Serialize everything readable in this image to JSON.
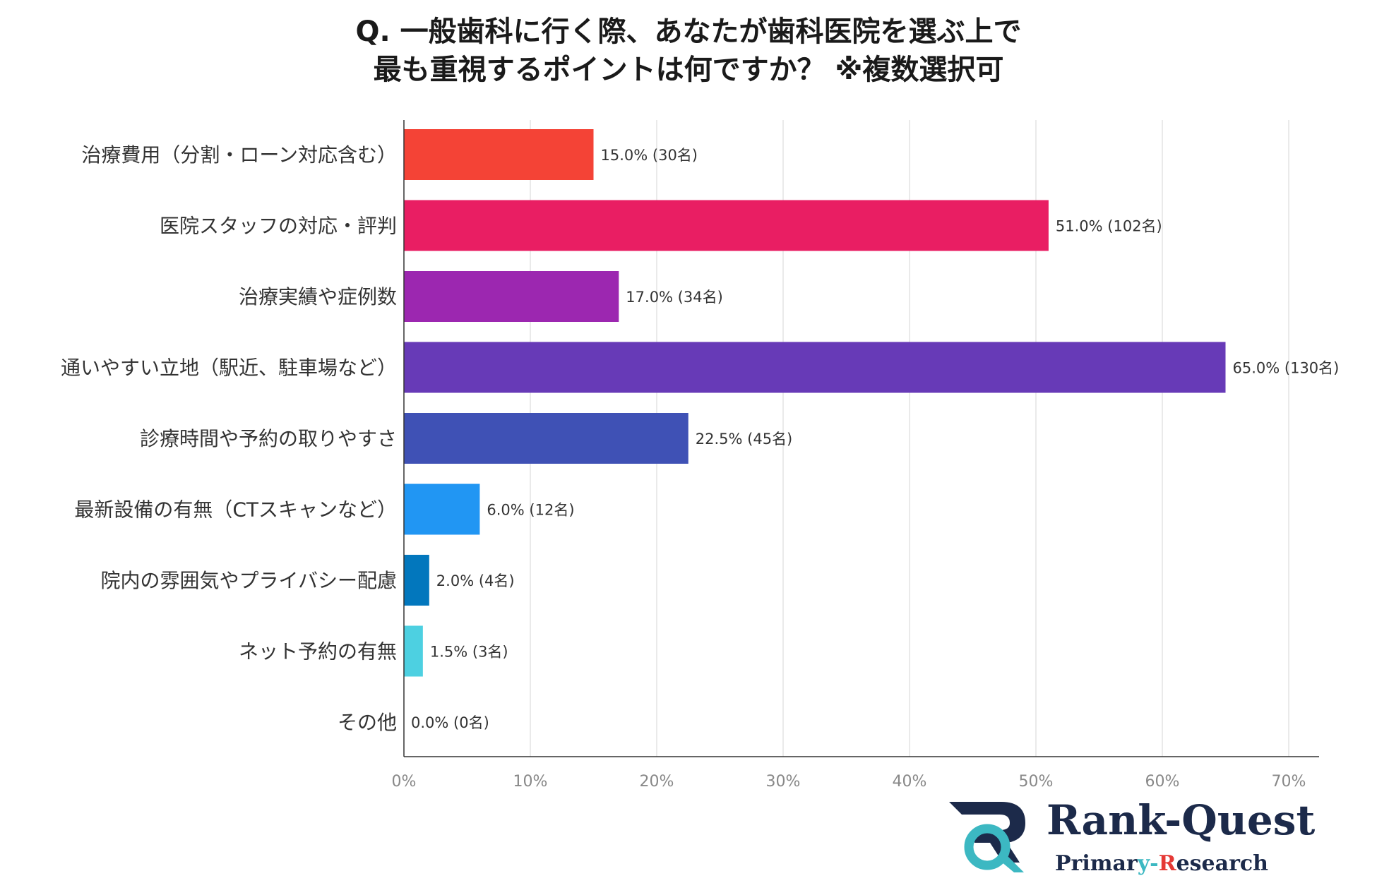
{
  "title": {
    "line1": "Q. 一般歯科に行く際、あなたが歯科医院を選ぶ上で",
    "line2": "最も重視するポイントは何ですか？ ※複数選択可"
  },
  "chart_data": {
    "type": "bar",
    "orientation": "horizontal",
    "categories": [
      "治療費用（分割・ローン対応含む）",
      "医院スタッフの対応・評判",
      "治療実績や症例数",
      "通いやすい立地（駅近、駐車場など）",
      "診療時間や予約の取りやすさ",
      "最新設備の有無（CTスキャンなど）",
      "院内の雰囲気やプライバシー配慮",
      "ネット予約の有無",
      "その他"
    ],
    "values": [
      15.0,
      51.0,
      17.0,
      65.0,
      22.5,
      6.0,
      2.0,
      1.5,
      0.0
    ],
    "value_labels": [
      "15.0% (30名)",
      "51.0% (102名)",
      "17.0% (34名)",
      "65.0% (130名)",
      "22.5% (45名)",
      "6.0% (12名)",
      "2.0% (4名)",
      "1.5% (3名)",
      "0.0% (0名)"
    ],
    "colors": [
      "#f44336",
      "#e91e63",
      "#9c27b0",
      "#673ab7",
      "#3f51b5",
      "#2196f3",
      "#0277bd",
      "#4dd0e1",
      "#9e9e9e"
    ],
    "xlim": [
      0,
      70
    ],
    "xticks": [
      "0%",
      "10%",
      "20%",
      "30%",
      "40%",
      "50%",
      "60%",
      "70%"
    ],
    "grid": true,
    "xlabel": "",
    "ylabel": ""
  },
  "logo": {
    "title_part1": "Rank-",
    "title_part2": "Quest",
    "sub_part1": "Primar",
    "sub_part2": "y-",
    "sub_part3": "R",
    "sub_part4": "esearch",
    "colors": {
      "navy": "#1c2a4a",
      "teal": "#3cb8c2"
    }
  }
}
